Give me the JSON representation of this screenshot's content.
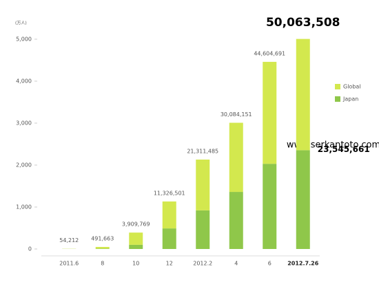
{
  "chart_data": {
    "type": "stacked-bar",
    "y_unit": "(万人)",
    "categories": [
      "2011.6",
      "8",
      "10",
      "12",
      "2012.2",
      "4",
      "6",
      "2012.7.26"
    ],
    "series": [
      {
        "name": "Japan",
        "color": "#8fc74a",
        "values": [
          2,
          10,
          100,
          490,
          920,
          1360,
          2030,
          2354.5661
        ],
        "value_labels": [
          null,
          null,
          null,
          null,
          null,
          null,
          null,
          "23,545,661"
        ]
      },
      {
        "name": "Global",
        "color": "#d3e84e",
        "values": [
          3.4212,
          39.1663,
          290.9769,
          642.6501,
          1211.1485,
          1648.4151,
          2430.4691,
          2651.7847
        ]
      }
    ],
    "totals": {
      "values": [
        5.4212,
        49.1663,
        390.9769,
        1132.6501,
        2131.1485,
        3008.4151,
        4460.4691,
        5006.3508
      ],
      "value_labels": [
        "54,212",
        "491,663",
        "3,909,769",
        "11,326,501",
        "21,311,485",
        "30,084,151",
        "44,604,691",
        "50,063,508"
      ]
    },
    "ylim": [
      0,
      5000
    ],
    "yticks": [
      0,
      {
        "value": 1000,
        "label": "1,000"
      },
      {
        "value": 2000,
        "label": "2,000"
      },
      {
        "value": 3000,
        "label": "3,000"
      },
      {
        "value": 4000,
        "label": "4,000"
      },
      {
        "value": 5000,
        "label": "5,000"
      }
    ],
    "annotation": "www.serkantoto.com",
    "legend": "right"
  }
}
